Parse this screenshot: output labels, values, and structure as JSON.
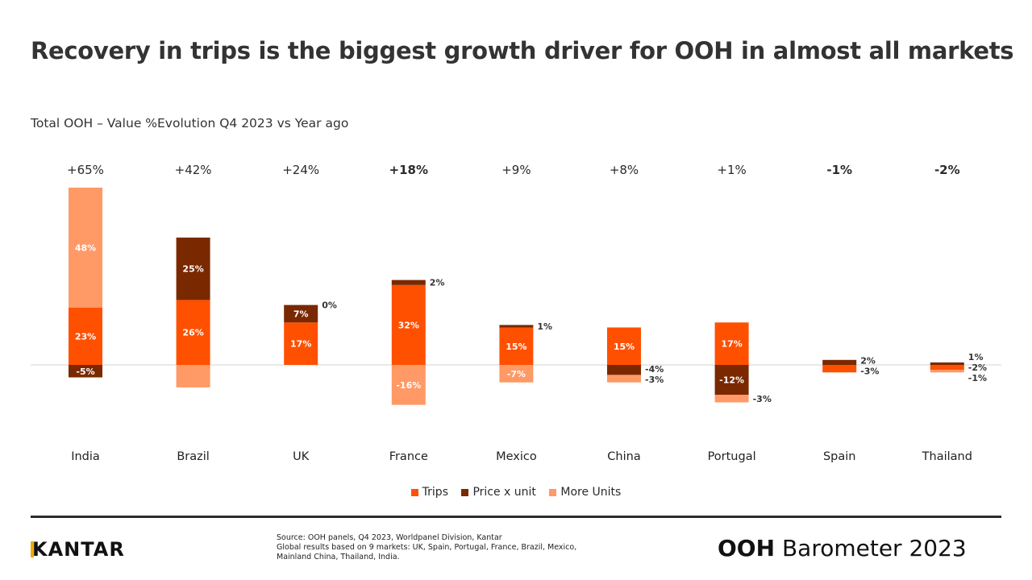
{
  "title": "Recovery in trips is the biggest growth driver for OOH in almost all markets",
  "subtitle": "Total OOH – Value %Evolution Q4 2023 vs Year ago",
  "chart_data": {
    "type": "bar",
    "stacked": true,
    "categories": [
      "India",
      "Brazil",
      "UK",
      "France",
      "Mexico",
      "China",
      "Portugal",
      "Spain",
      "Thailand"
    ],
    "totals": [
      "+65%",
      "+42%",
      "+24%",
      "+18%",
      "+9%",
      "+8%",
      "+1%",
      "-1%",
      "-2%"
    ],
    "totals_bold": [
      false,
      false,
      false,
      true,
      false,
      false,
      false,
      true,
      true
    ],
    "series": [
      {
        "name": "Trips",
        "color": "#ff5000",
        "values": [
          23,
          26,
          17,
          32,
          15,
          15,
          17,
          -3,
          -2
        ],
        "labels": [
          "23%",
          "26%",
          "17%",
          "32%",
          "15%",
          "15%",
          "17%",
          "-3%",
          "-2%"
        ]
      },
      {
        "name": "Price x unit",
        "color": "#7a2800",
        "values": [
          -5,
          25,
          7,
          2,
          1,
          -4,
          -12,
          2,
          1
        ],
        "labels": [
          "-5%",
          "25%",
          "7%",
          "2%",
          "1%",
          "-4%",
          "-12%",
          "2%",
          "1%"
        ]
      },
      {
        "name": "More Units",
        "color": "#ff9966",
        "values": [
          48,
          -9,
          0,
          -16,
          -7,
          -3,
          -3,
          0,
          -1
        ],
        "labels": [
          "48%",
          "",
          "0%",
          "-16%",
          "-7%",
          "-3%",
          "-3%",
          "",
          "-1%"
        ]
      }
    ],
    "legend": "bottom",
    "grid": false
  },
  "footer": {
    "logo": "KANTAR",
    "source_lines": [
      "Source: OOH panels, Q4 2023, Worldpanel Division, Kantar",
      "Global results based on 9 markets: UK, Spain, Portugal, France, Brazil, Mexico,",
      "Mainland China, Thailand, India."
    ],
    "brand_bold": "OOH",
    "brand_rest": " Barometer 2023"
  }
}
